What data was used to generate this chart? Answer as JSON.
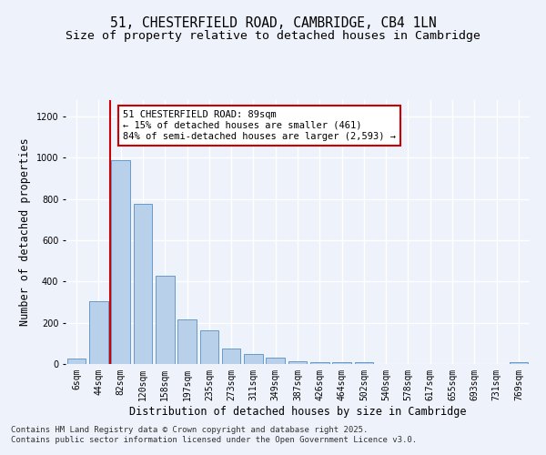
{
  "title1": "51, CHESTERFIELD ROAD, CAMBRIDGE, CB4 1LN",
  "title2": "Size of property relative to detached houses in Cambridge",
  "xlabel": "Distribution of detached houses by size in Cambridge",
  "ylabel": "Number of detached properties",
  "categories": [
    "6sqm",
    "44sqm",
    "82sqm",
    "120sqm",
    "158sqm",
    "197sqm",
    "235sqm",
    "273sqm",
    "311sqm",
    "349sqm",
    "387sqm",
    "426sqm",
    "464sqm",
    "502sqm",
    "540sqm",
    "578sqm",
    "617sqm",
    "655sqm",
    "693sqm",
    "731sqm",
    "769sqm"
  ],
  "bar_values": [
    25,
    305,
    990,
    775,
    430,
    215,
    165,
    75,
    50,
    30,
    15,
    10,
    10,
    10,
    0,
    0,
    0,
    0,
    0,
    0,
    10
  ],
  "bar_color": "#b8d0ea",
  "bar_edge_color": "#6699cc",
  "background_color": "#eef2fb",
  "grid_color": "#ffffff",
  "vline_color": "#cc0000",
  "vline_x": 1.5,
  "annotation_text": "51 CHESTERFIELD ROAD: 89sqm\n← 15% of detached houses are smaller (461)\n84% of semi-detached houses are larger (2,593) →",
  "annotation_box_color": "#cc0000",
  "ylim": [
    0,
    1280
  ],
  "yticks": [
    0,
    200,
    400,
    600,
    800,
    1000,
    1200
  ],
  "footnote1": "Contains HM Land Registry data © Crown copyright and database right 2025.",
  "footnote2": "Contains public sector information licensed under the Open Government Licence v3.0.",
  "title_fontsize": 10.5,
  "subtitle_fontsize": 9.5,
  "axis_label_fontsize": 8.5,
  "tick_fontsize": 7,
  "annot_fontsize": 7.5,
  "footnote_fontsize": 6.5
}
